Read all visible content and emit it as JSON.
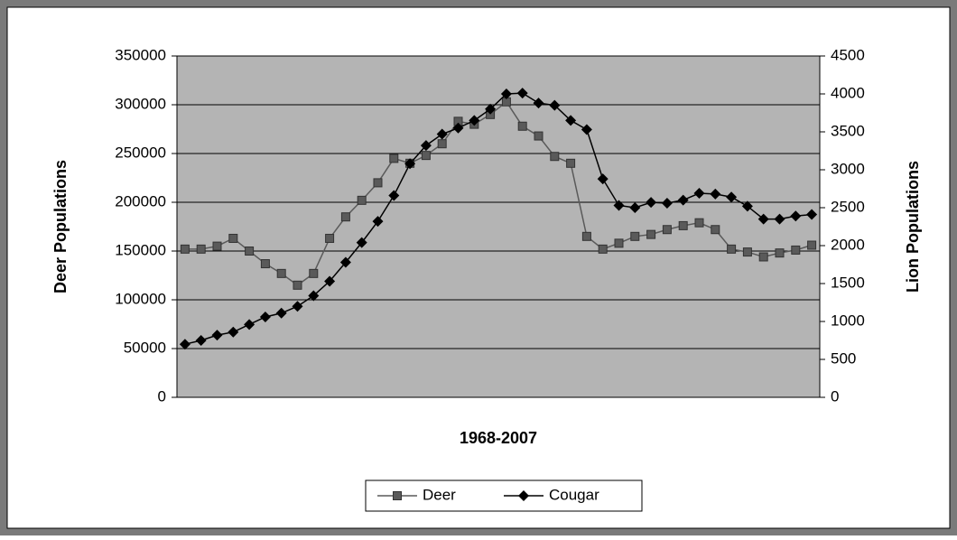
{
  "chart_data": {
    "type": "line",
    "x_label": "1968-2007",
    "y_label": "Deer Populations",
    "y2_label": "Lion Populations",
    "categories": [
      null,
      null,
      null,
      null,
      null,
      null,
      null,
      null,
      null,
      null,
      null,
      null,
      null,
      null,
      null,
      null,
      null,
      null,
      null,
      null,
      null,
      null,
      null,
      null,
      null,
      null,
      null,
      null,
      null,
      null,
      null,
      null,
      null,
      null,
      null,
      null,
      null,
      null,
      null,
      null
    ],
    "ylim": [
      0,
      350000
    ],
    "yticks": [
      0,
      50000,
      100000,
      150000,
      200000,
      250000,
      300000,
      350000
    ],
    "y2lim": [
      0,
      4500
    ],
    "y2ticks": [
      0,
      500,
      1000,
      1500,
      2000,
      2500,
      3000,
      3500,
      4000,
      4500
    ],
    "grid": true,
    "legend": "bottom",
    "series": [
      {
        "name": "Deer",
        "color": "#5a5a5a",
        "marker": "square",
        "values": [
          152000,
          152000,
          155000,
          163000,
          150000,
          137000,
          127000,
          115000,
          127000,
          163000,
          185000,
          202000,
          220000,
          245000,
          240000,
          248000,
          260000,
          283000,
          280000,
          290000,
          303000,
          278000,
          268000,
          247000,
          240000,
          165000,
          152000,
          158000,
          165000,
          167000,
          172000,
          176000,
          179000,
          172000,
          152000,
          149000,
          144000,
          148000,
          151000,
          156000
        ]
      },
      {
        "name": "Cougar",
        "color": "#000000",
        "marker": "diamond",
        "axis": "y2",
        "values": [
          700,
          750,
          820,
          860,
          960,
          1060,
          1110,
          1200,
          1340,
          1530,
          1780,
          2040,
          2320,
          2660,
          3080,
          3320,
          3470,
          3550,
          3650,
          3800,
          4000,
          4010,
          3880,
          3850,
          3650,
          3530,
          2880,
          2530,
          2500,
          2570,
          2560,
          2600,
          2690,
          2680,
          2640,
          2520,
          2350,
          2350,
          2390,
          2410
        ]
      }
    ]
  }
}
